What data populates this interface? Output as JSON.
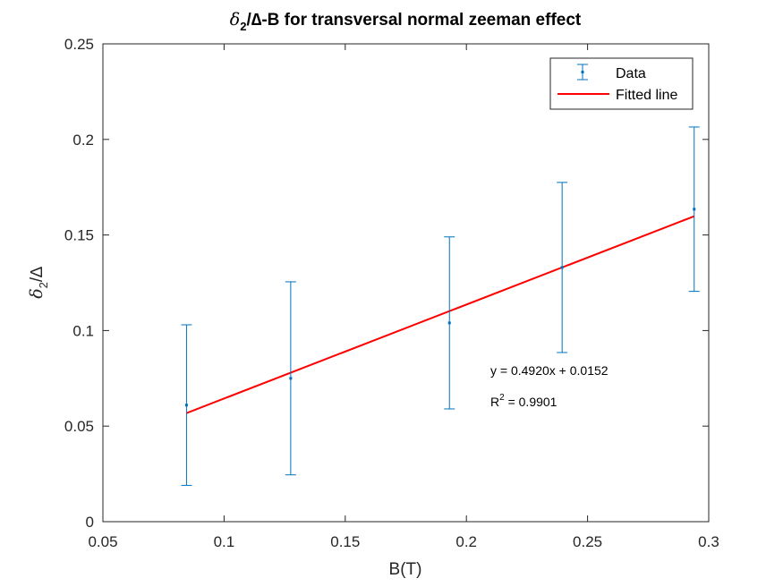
{
  "chart_data": {
    "type": "scatter",
    "title_parts": {
      "symbol": "δ",
      "subscript": "2",
      "rest": "/∆-B for transversal normal zeeman effect"
    },
    "xlabel": "B(T)",
    "ylabel_parts": {
      "symbol": "δ",
      "subscript": "2",
      "rest": "/∆"
    },
    "xlim": [
      0.05,
      0.3
    ],
    "ylim": [
      0,
      0.25
    ],
    "xticks": [
      0.05,
      0.1,
      0.15,
      0.2,
      0.25,
      0.3
    ],
    "xtick_labels": [
      "0.05",
      "0.1",
      "0.15",
      "0.2",
      "0.25",
      "0.3"
    ],
    "yticks": [
      0,
      0.05,
      0.1,
      0.15,
      0.2,
      0.25
    ],
    "ytick_labels": [
      "0",
      "0.05",
      "0.1",
      "0.15",
      "0.2",
      "0.25"
    ],
    "grid": false,
    "legend_position": "top-right",
    "series": [
      {
        "name": "Data",
        "kind": "errorbar",
        "color": "#0072BD",
        "x": [
          0.0845,
          0.1275,
          0.193,
          0.2395,
          0.294
        ],
        "y": [
          0.061,
          0.075,
          0.104,
          0.133,
          0.1635
        ],
        "err": [
          0.042,
          0.0505,
          0.045,
          0.0445,
          0.043
        ]
      },
      {
        "name": "Fitted line",
        "kind": "line",
        "color": "#FF0000",
        "x": [
          0.0845,
          0.294
        ],
        "y": [
          0.0568,
          0.1598
        ]
      }
    ],
    "annotations": {
      "equation": "y = 0.4920x + 0.0152",
      "r2_prefix": "R",
      "r2_superscript": "2",
      "r2_value": " = 0.9901"
    }
  }
}
